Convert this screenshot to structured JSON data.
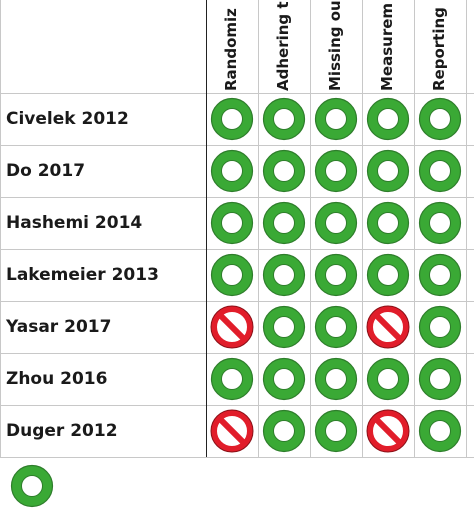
{
  "domains": [
    {
      "label": "Randomiz"
    },
    {
      "label": "Adhering t"
    },
    {
      "label": "Missing ou"
    },
    {
      "label": "Measurem"
    },
    {
      "label": "Reporting"
    }
  ],
  "studies": [
    {
      "label": "Civelek 2012",
      "ratings": [
        "low",
        "low",
        "low",
        "low",
        "low"
      ]
    },
    {
      "label": "Do 2017",
      "ratings": [
        "low",
        "low",
        "low",
        "low",
        "low"
      ]
    },
    {
      "label": "Hashemi 2014",
      "ratings": [
        "low",
        "low",
        "low",
        "low",
        "low"
      ]
    },
    {
      "label": "Lakemeier 2013",
      "ratings": [
        "low",
        "low",
        "low",
        "low",
        "low"
      ]
    },
    {
      "label": "Yasar 2017",
      "ratings": [
        "high",
        "low",
        "low",
        "high",
        "low"
      ]
    },
    {
      "label": "Zhou 2016",
      "ratings": [
        "low",
        "low",
        "low",
        "low",
        "low"
      ]
    },
    {
      "label": "Duger 2012",
      "ratings": [
        "high",
        "low",
        "low",
        "high",
        "low"
      ]
    }
  ],
  "legend": [
    {
      "rating": "low"
    }
  ],
  "colors": {
    "low_fill": "#3aa935",
    "low_outline": "#2e7d2b",
    "high_fill": "#e11d2a",
    "grid": "#c8c8c8"
  },
  "icons": {
    "low": "green-circle-icon",
    "high": "red-prohibited-icon"
  }
}
